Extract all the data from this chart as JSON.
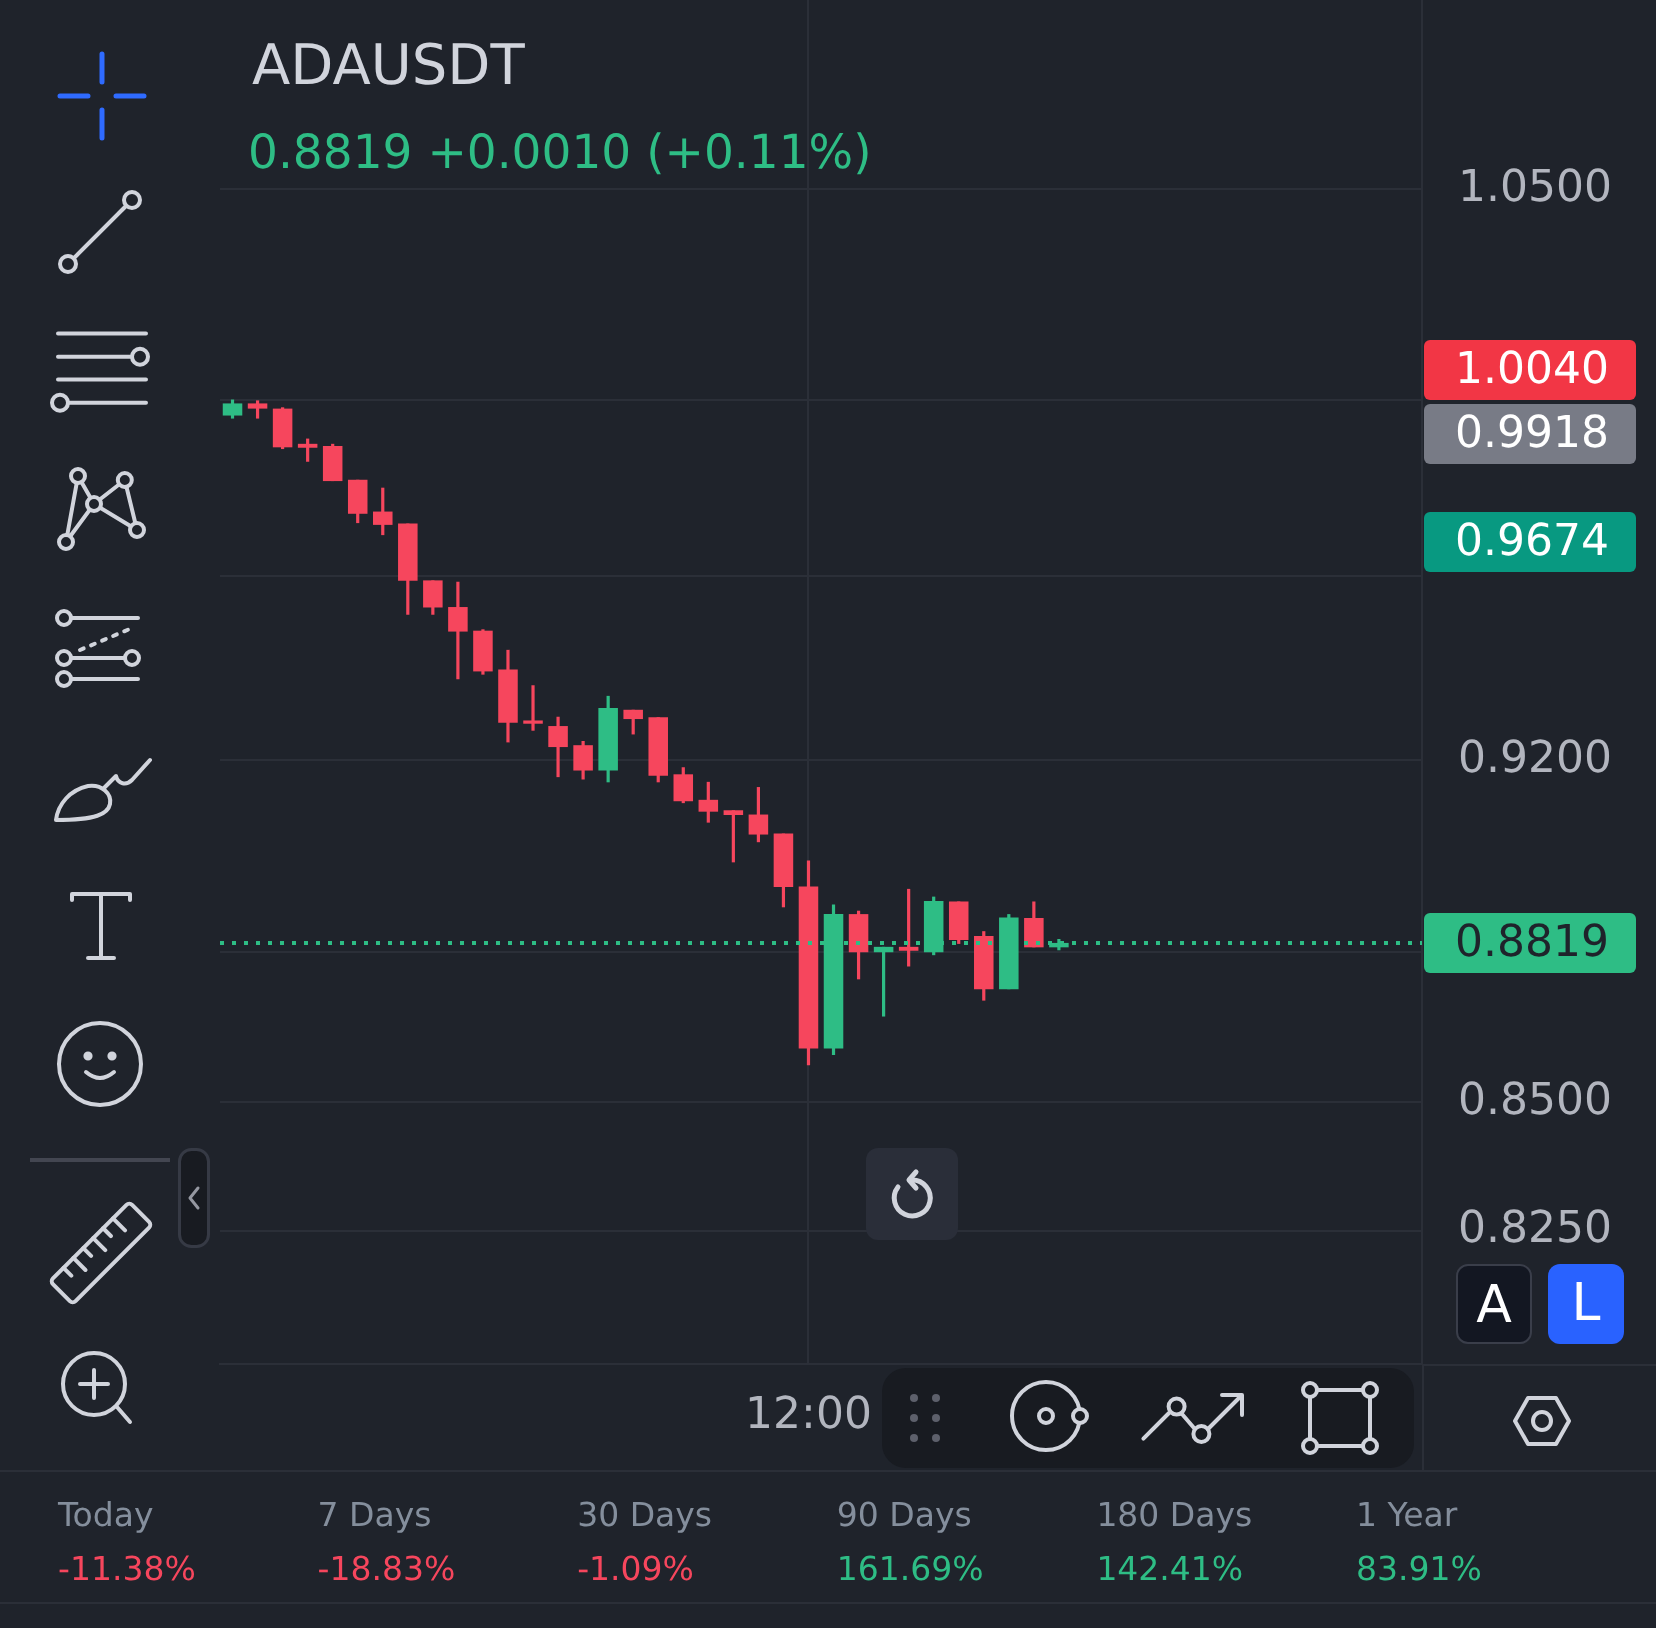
{
  "chart_data": [
    {
      "type": "candlestick",
      "title": "ADAUSDT",
      "subtitle": "0.8819 +0.0010 (+0.11%)",
      "categories": [
        null,
        null,
        null,
        null,
        null,
        null,
        null,
        null,
        null,
        null,
        null,
        null,
        null,
        null,
        null,
        null,
        null,
        null,
        null,
        null,
        null,
        null,
        null,
        "12:00",
        null,
        null,
        null,
        null,
        null,
        null,
        null,
        null,
        null,
        null,
        null,
        null,
        null,
        null,
        null,
        null,
        null,
        null,
        null,
        null,
        null,
        null,
        null,
        null
      ],
      "ohlc": [
        [
          0.9964,
          1.0001,
          0.9957,
          0.9992
        ],
        [
          0.9992,
          0.9999,
          0.9957,
          0.998
        ],
        [
          0.998,
          0.9983,
          0.9887,
          0.9891
        ],
        [
          0.9899,
          0.9911,
          0.9858,
          0.989
        ],
        [
          0.9894,
          0.9899,
          0.9814,
          0.9814
        ],
        [
          0.9817,
          0.9817,
          0.9719,
          0.974
        ],
        [
          0.9745,
          0.9799,
          0.9692,
          0.9715
        ],
        [
          0.9718,
          0.9718,
          0.9515,
          0.959
        ],
        [
          0.9591,
          0.9591,
          0.9515,
          0.9531
        ],
        [
          0.9532,
          0.9588,
          0.9374,
          0.9478
        ],
        [
          0.948,
          0.9483,
          0.9384,
          0.9391
        ],
        [
          0.9395,
          0.9438,
          0.9238,
          0.928
        ],
        [
          0.9285,
          0.9361,
          0.9263,
          0.9278
        ],
        [
          0.9273,
          0.9293,
          0.9164,
          0.9228
        ],
        [
          0.9232,
          0.9241,
          0.9159,
          0.9178
        ],
        [
          0.9178,
          0.9338,
          0.9153,
          0.9312
        ],
        [
          0.9308,
          0.9308,
          0.9255,
          0.9288
        ],
        [
          0.9292,
          0.9292,
          0.9153,
          0.9167
        ],
        [
          0.917,
          0.9185,
          0.9109,
          0.9113
        ],
        [
          0.9116,
          0.9154,
          0.9068,
          0.9091
        ],
        [
          0.9094,
          0.9094,
          0.8985,
          0.9084
        ],
        [
          0.9085,
          0.9143,
          0.9027,
          0.9043
        ],
        [
          0.9045,
          0.9045,
          0.8892,
          0.8934
        ],
        [
          0.8935,
          0.8989,
          0.8573,
          0.8606
        ],
        [
          0.8606,
          0.8898,
          0.8593,
          0.8878
        ],
        [
          0.8878,
          0.8885,
          0.8745,
          0.88
        ],
        [
          0.88,
          0.8811,
          0.867,
          0.8811
        ],
        [
          0.8811,
          0.893,
          0.8771,
          0.8803
        ],
        [
          0.88,
          0.8914,
          0.8794,
          0.8905
        ],
        [
          0.8904,
          0.8904,
          0.8817,
          0.8825
        ],
        [
          0.8833,
          0.8843,
          0.8702,
          0.8725
        ],
        [
          0.8725,
          0.8878,
          0.8725,
          0.8871
        ],
        [
          0.887,
          0.8904,
          0.881,
          0.881
        ],
        [
          0.881,
          0.8827,
          0.8804,
          0.8819
        ],
        null,
        null,
        null,
        null,
        null,
        null,
        null,
        null,
        null,
        null,
        null,
        null,
        null,
        null
      ],
      "colors": [
        "#2ebd85",
        "#f6465d",
        "#f6465d",
        "#f6465d",
        "#f6465d",
        "#f6465d",
        "#f6465d",
        "#f6465d",
        "#f6465d",
        "#f6465d",
        "#f6465d",
        "#f6465d",
        "#f6465d",
        "#f6465d",
        "#f6465d",
        "#2ebd85",
        "#f6465d",
        "#f6465d",
        "#f6465d",
        "#f6465d",
        "#f6465d",
        "#f6465d",
        "#f6465d",
        "#f6465d",
        "#2ebd85",
        "#f6465d",
        "#2ebd85",
        "#f6465d",
        "#2ebd85",
        "#f6465d",
        "#f6465d",
        "#2ebd85",
        "#f6465d",
        "#2ebd85",
        null,
        null,
        null,
        null,
        null,
        null,
        null,
        null,
        null,
        null,
        null,
        null,
        null,
        null
      ],
      "log": true,
      "ylim": [
        0.8,
        1.097
      ],
      "yticks": [
        {
          "value": 0.825,
          "label": "0.8250"
        },
        {
          "value": 0.85,
          "label": "0.8500"
        },
        {
          "value": 0.88,
          "label": null
        },
        {
          "value": 0.92,
          "label": "0.9200"
        },
        {
          "value": 0.96,
          "label": null
        },
        {
          "value": 1,
          "label": null
        },
        {
          "value": 1.05,
          "label": "1.0500"
        }
      ],
      "grid": true,
      "ref_lines": [
        {
          "axis": "y",
          "value": 0.8819,
          "label": "0.8819",
          "color": "#2ebd85",
          "line_style": "dotted"
        }
      ],
      "annotations": [
        "1.0040",
        "0.9918",
        "0.9674",
        "A",
        "L"
      ]
    },
    {
      "type": "other",
      "categories": [
        "Today",
        "7 Days",
        "30 Days",
        "90 Days",
        "180 Days",
        "1 Year"
      ],
      "value_labels": [
        "-11.38%",
        "-18.83%",
        "-1.09%",
        "161.69%",
        "142.41%",
        "83.91%"
      ],
      "colors": [
        "#f6465d",
        "#f6465d",
        "#f6465d",
        "#2ebd85",
        "#2ebd85",
        "#2ebd85"
      ]
    }
  ]
}
